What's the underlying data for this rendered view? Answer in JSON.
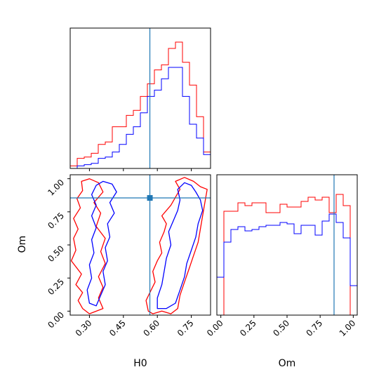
{
  "chart_data": {
    "type": "corner",
    "params": [
      "H0",
      "Om"
    ],
    "axis_labels": {
      "x_bottom_left": "H0",
      "x_bottom_right": "Om",
      "y_lower_left": "Om"
    },
    "truth": {
      "H0": 0.567,
      "Om": 0.855
    },
    "truth_color": "#1f77b4",
    "series": [
      {
        "color": "#ff0000"
      },
      {
        "color": "#0000ff"
      }
    ],
    "axes": {
      "h0_range": [
        0.215,
        0.835
      ],
      "om_range": [
        -0.03,
        1.03
      ],
      "h0_ticks": [
        "0.30",
        "0.45",
        "0.60",
        "0.75"
      ],
      "om_ticks": [
        "0.00",
        "0.25",
        "0.50",
        "0.75",
        "1.00"
      ],
      "h0_tick_values": [
        0.3,
        0.45,
        0.6,
        0.75
      ],
      "om_tick_values": [
        0.0,
        0.25,
        0.5,
        0.75,
        1.0
      ]
    },
    "h0_hist": {
      "edges": [
        0.215,
        0.246,
        0.277,
        0.308,
        0.339,
        0.37,
        0.401,
        0.432,
        0.463,
        0.494,
        0.525,
        0.556,
        0.587,
        0.618,
        0.649,
        0.68,
        0.711,
        0.742,
        0.773,
        0.804,
        0.835
      ],
      "red": [
        0.02,
        0.08,
        0.09,
        0.12,
        0.19,
        0.21,
        0.33,
        0.33,
        0.42,
        0.46,
        0.57,
        0.67,
        0.78,
        0.82,
        0.95,
        1.0,
        0.84,
        0.66,
        0.41,
        0.13
      ],
      "blue": [
        0.0,
        0.02,
        0.03,
        0.04,
        0.08,
        0.09,
        0.13,
        0.19,
        0.27,
        0.33,
        0.44,
        0.57,
        0.62,
        0.71,
        0.8,
        0.8,
        0.57,
        0.35,
        0.24,
        0.11
      ]
    },
    "om_hist": {
      "edges": [
        -0.03,
        0.023,
        0.076,
        0.129,
        0.182,
        0.235,
        0.288,
        0.341,
        0.394,
        0.447,
        0.5,
        0.553,
        0.606,
        0.659,
        0.712,
        0.765,
        0.818,
        0.871,
        0.924,
        0.977,
        1.03
      ],
      "red": [
        0.0,
        0.74,
        0.74,
        0.8,
        0.78,
        0.8,
        0.8,
        0.73,
        0.73,
        0.79,
        0.77,
        0.77,
        0.81,
        0.84,
        0.82,
        0.84,
        0.73,
        0.86,
        0.78,
        0.0
      ],
      "blue": [
        0.27,
        0.52,
        0.61,
        0.63,
        0.6,
        0.61,
        0.63,
        0.64,
        0.64,
        0.66,
        0.65,
        0.58,
        0.64,
        0.64,
        0.57,
        0.67,
        0.72,
        0.66,
        0.55,
        0.21
      ]
    },
    "contours": [
      {
        "series": 0,
        "points": [
          [
            0.27,
            0.02
          ],
          [
            0.25,
            0.08
          ],
          [
            0.27,
            0.14
          ],
          [
            0.24,
            0.2
          ],
          [
            0.265,
            0.28
          ],
          [
            0.22,
            0.38
          ],
          [
            0.24,
            0.46
          ],
          [
            0.23,
            0.55
          ],
          [
            0.25,
            0.62
          ],
          [
            0.23,
            0.7
          ],
          [
            0.26,
            0.78
          ],
          [
            0.245,
            0.85
          ],
          [
            0.27,
            0.91
          ],
          [
            0.265,
            0.98
          ],
          [
            0.3,
            1.0
          ],
          [
            0.34,
            0.97
          ],
          [
            0.36,
            0.9
          ],
          [
            0.32,
            0.82
          ],
          [
            0.35,
            0.74
          ],
          [
            0.33,
            0.64
          ],
          [
            0.37,
            0.55
          ],
          [
            0.35,
            0.45
          ],
          [
            0.37,
            0.36
          ],
          [
            0.34,
            0.26
          ],
          [
            0.36,
            0.18
          ],
          [
            0.34,
            0.1
          ],
          [
            0.36,
            0.02
          ],
          [
            0.3,
            -0.02
          ],
          [
            0.27,
            0.02
          ]
        ]
      },
      {
        "series": 0,
        "points": [
          [
            0.56,
            0.0
          ],
          [
            0.55,
            0.08
          ],
          [
            0.57,
            0.15
          ],
          [
            0.59,
            0.22
          ],
          [
            0.58,
            0.3
          ],
          [
            0.6,
            0.38
          ],
          [
            0.62,
            0.44
          ],
          [
            0.61,
            0.52
          ],
          [
            0.63,
            0.6
          ],
          [
            0.64,
            0.66
          ],
          [
            0.62,
            0.72
          ],
          [
            0.66,
            0.8
          ],
          [
            0.68,
            0.86
          ],
          [
            0.7,
            0.92
          ],
          [
            0.68,
            0.98
          ],
          [
            0.72,
            1.01
          ],
          [
            0.76,
            0.98
          ],
          [
            0.79,
            0.94
          ],
          [
            0.82,
            0.92
          ],
          [
            0.81,
            0.82
          ],
          [
            0.8,
            0.72
          ],
          [
            0.79,
            0.62
          ],
          [
            0.78,
            0.52
          ],
          [
            0.76,
            0.42
          ],
          [
            0.74,
            0.32
          ],
          [
            0.72,
            0.22
          ],
          [
            0.7,
            0.12
          ],
          [
            0.69,
            0.02
          ],
          [
            0.66,
            -0.02
          ],
          [
            0.62,
            0.0
          ],
          [
            0.58,
            -0.02
          ],
          [
            0.56,
            0.0
          ]
        ]
      },
      {
        "series": 1,
        "points": [
          [
            0.3,
            0.06
          ],
          [
            0.29,
            0.16
          ],
          [
            0.31,
            0.25
          ],
          [
            0.3,
            0.35
          ],
          [
            0.32,
            0.44
          ],
          [
            0.31,
            0.54
          ],
          [
            0.33,
            0.63
          ],
          [
            0.31,
            0.72
          ],
          [
            0.33,
            0.8
          ],
          [
            0.31,
            0.88
          ],
          [
            0.33,
            0.95
          ],
          [
            0.36,
            0.98
          ],
          [
            0.4,
            0.96
          ],
          [
            0.42,
            0.9
          ],
          [
            0.39,
            0.82
          ],
          [
            0.41,
            0.74
          ],
          [
            0.38,
            0.66
          ],
          [
            0.39,
            0.56
          ],
          [
            0.37,
            0.48
          ],
          [
            0.38,
            0.38
          ],
          [
            0.36,
            0.3
          ],
          [
            0.37,
            0.2
          ],
          [
            0.35,
            0.12
          ],
          [
            0.33,
            0.04
          ],
          [
            0.3,
            0.06
          ]
        ]
      },
      {
        "series": 1,
        "points": [
          [
            0.6,
            0.02
          ],
          [
            0.6,
            0.1
          ],
          [
            0.62,
            0.2
          ],
          [
            0.63,
            0.3
          ],
          [
            0.64,
            0.4
          ],
          [
            0.66,
            0.5
          ],
          [
            0.65,
            0.6
          ],
          [
            0.67,
            0.68
          ],
          [
            0.69,
            0.76
          ],
          [
            0.7,
            0.84
          ],
          [
            0.69,
            0.92
          ],
          [
            0.72,
            0.97
          ],
          [
            0.75,
            0.95
          ],
          [
            0.77,
            0.9
          ],
          [
            0.79,
            0.84
          ],
          [
            0.8,
            0.76
          ],
          [
            0.78,
            0.66
          ],
          [
            0.77,
            0.56
          ],
          [
            0.75,
            0.46
          ],
          [
            0.73,
            0.36
          ],
          [
            0.72,
            0.26
          ],
          [
            0.7,
            0.16
          ],
          [
            0.68,
            0.06
          ],
          [
            0.64,
            0.02
          ],
          [
            0.6,
            0.02
          ]
        ]
      }
    ]
  }
}
